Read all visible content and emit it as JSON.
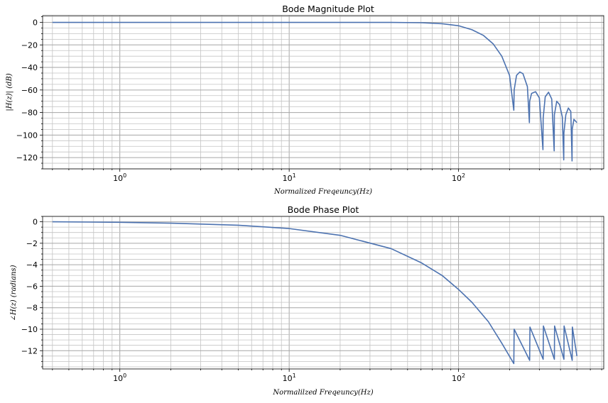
{
  "chart_data": [
    {
      "type": "line",
      "title": "Bode Magnitude Plot",
      "xlabel": "Normalized Freqeuncy(Hz)",
      "ylabel": "|H(z)| (dB)",
      "xscale": "log",
      "xlim": [
        0.35,
        720
      ],
      "ylim": [
        -130,
        6
      ],
      "grid": true,
      "x_ticks": [
        1,
        10,
        100
      ],
      "x_tick_labels": [
        "10",
        "10",
        "10"
      ],
      "x_tick_exponents": [
        "0",
        "1",
        "2"
      ],
      "y_ticks": [
        0,
        -20,
        -40,
        -60,
        -80,
        -100,
        -120
      ],
      "y_tick_labels": [
        "0",
        "−20",
        "−40",
        "−60",
        "−80",
        "−100",
        "−120"
      ],
      "line_color": "#4c72b0",
      "series": [
        {
          "x": [
            0.4,
            1,
            3,
            10,
            20,
            40,
            60,
            80,
            100,
            120,
            140,
            160,
            180,
            200,
            212,
            213,
            220,
            230,
            240,
            255,
            262,
            263,
            270,
            285,
            300,
            315,
            316,
            325,
            340,
            355,
            367,
            368,
            380,
            395,
            410,
            418,
            419,
            430,
            445,
            460,
            468,
            469,
            480,
            500
          ],
          "y": [
            0,
            0,
            0,
            0,
            0,
            0,
            -0.3,
            -1.2,
            -3,
            -6.5,
            -11.5,
            -19,
            -30,
            -47,
            -78,
            -60,
            -47,
            -44,
            -45.5,
            -57,
            -89,
            -70,
            -63,
            -61.5,
            -67,
            -113,
            -85,
            -66,
            -62,
            -68,
            -114,
            -82,
            -70,
            -73,
            -84,
            -122,
            -98,
            -82,
            -76,
            -79,
            -123,
            -95,
            -86,
            -89
          ]
        }
      ]
    },
    {
      "type": "line",
      "title": "Bode Phase Plot",
      "xlabel": "Normalilzed Freqeuncy(Hz)",
      "ylabel": "∠H(z) (radians)",
      "xscale": "log",
      "xlim": [
        0.35,
        720
      ],
      "ylim": [
        -13.7,
        0.5
      ],
      "grid": true,
      "x_ticks": [
        1,
        10,
        100
      ],
      "x_tick_labels": [
        "10",
        "10",
        "10"
      ],
      "x_tick_exponents": [
        "0",
        "1",
        "2"
      ],
      "y_ticks": [
        0,
        -2,
        -4,
        -6,
        -8,
        -10,
        -12
      ],
      "y_tick_labels": [
        "0",
        "−2",
        "−4",
        "−6",
        "−8",
        "−10",
        "−12"
      ],
      "line_color": "#4c72b0",
      "series": [
        {
          "x": [
            0.4,
            1,
            2,
            5,
            10,
            20,
            40,
            60,
            80,
            100,
            120,
            150,
            180,
            212,
            213,
            263,
            264,
            316,
            317,
            368,
            369,
            419,
            420,
            469,
            470,
            500
          ],
          "y": [
            0,
            -0.05,
            -0.13,
            -0.32,
            -0.63,
            -1.26,
            -2.5,
            -3.8,
            -5.0,
            -6.3,
            -7.5,
            -9.3,
            -11.3,
            -13.2,
            -10.0,
            -12.9,
            -9.8,
            -12.8,
            -9.7,
            -12.8,
            -9.7,
            -12.8,
            -9.7,
            -12.9,
            -9.8,
            -12.5
          ]
        }
      ]
    }
  ]
}
